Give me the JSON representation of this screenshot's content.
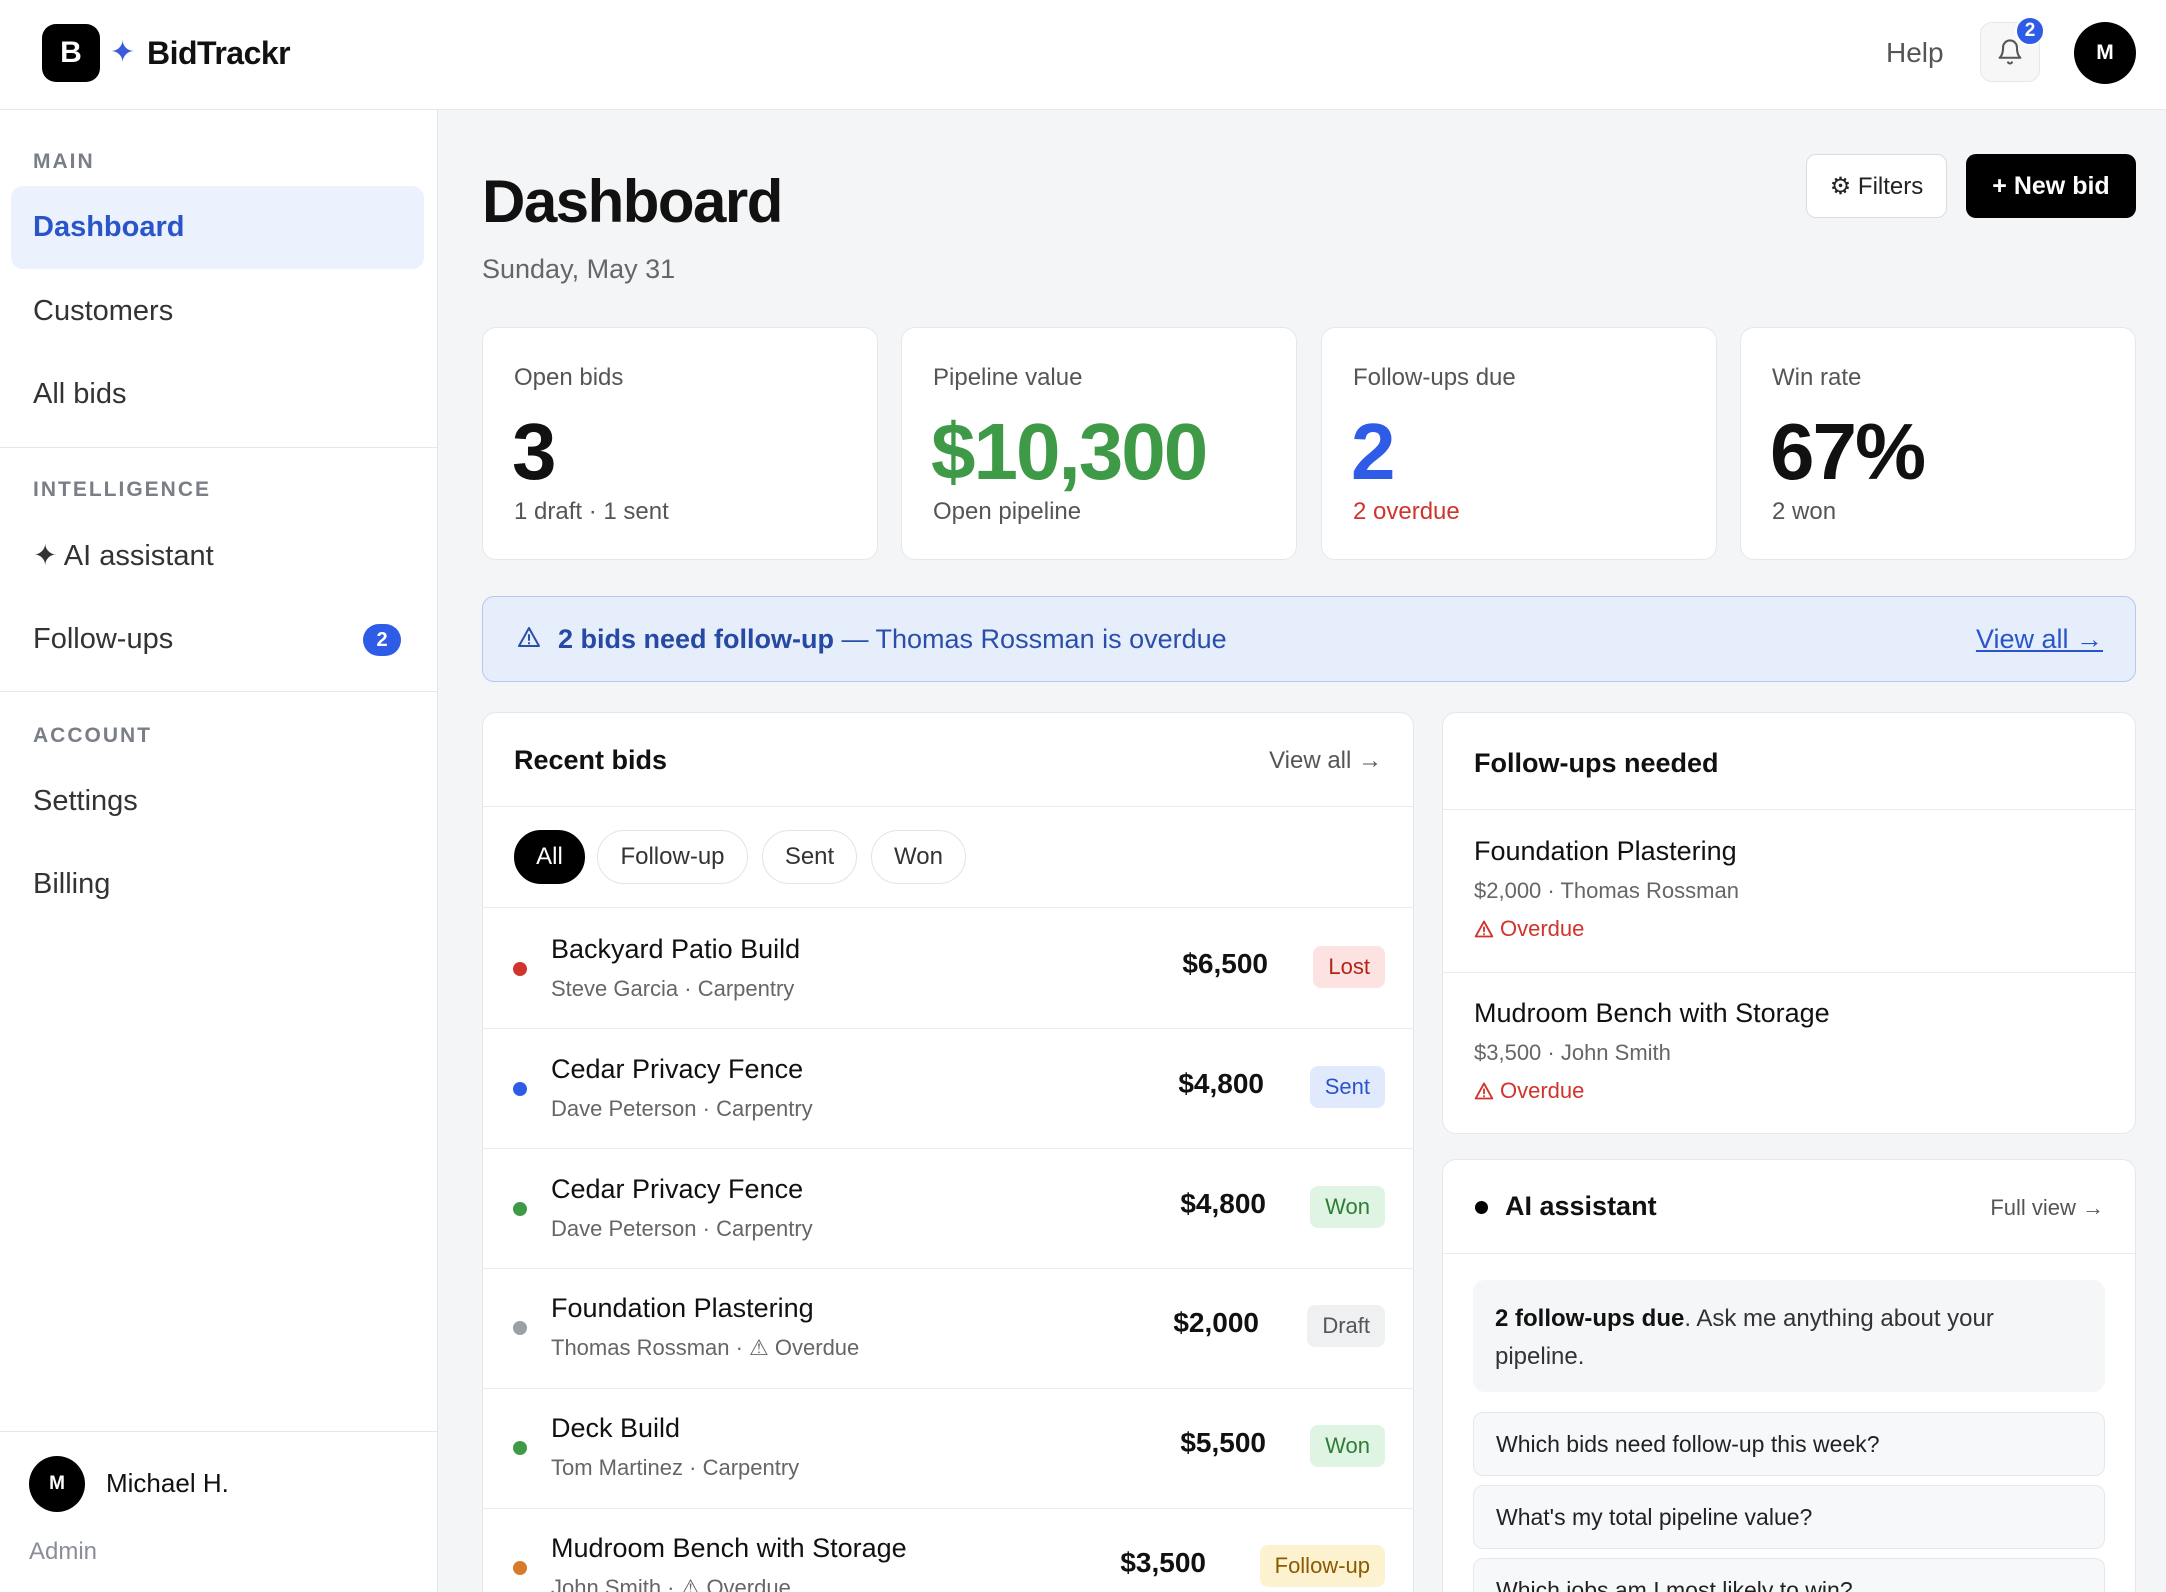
{
  "header": {
    "logo_letter": "B",
    "app_name": "BidTrackr",
    "help_label": "Help",
    "notifications_count": "2",
    "user_initial": "M"
  },
  "sidebar": {
    "sections": [
      {
        "label": "MAIN",
        "items": [
          {
            "label": "Dashboard",
            "active": true
          },
          {
            "label": "Customers"
          },
          {
            "label": "All bids"
          }
        ]
      },
      {
        "label": "INTELLIGENCE",
        "items": [
          {
            "label": "✦ AI assistant"
          },
          {
            "label": "Follow-ups",
            "badge": "2"
          }
        ]
      },
      {
        "label": "ACCOUNT",
        "items": [
          {
            "label": "Settings"
          },
          {
            "label": "Billing"
          }
        ]
      }
    ],
    "user": {
      "initial": "M",
      "name": "Michael H.",
      "role": "Admin"
    }
  },
  "page": {
    "title": "Dashboard",
    "date": "Sunday, May 31",
    "filters_label": "⚙ Filters",
    "new_bid_label": "+ New bid"
  },
  "stats": [
    {
      "label": "Open bids",
      "value": "3",
      "sub": "1 draft · 1 sent",
      "value_color": "#111111",
      "sub_color": "#555555"
    },
    {
      "label": "Pipeline value",
      "value": "$10,300",
      "sub": "Open pipeline",
      "value_color": "#3f9a47",
      "sub_color": "#555555"
    },
    {
      "label": "Follow-ups due",
      "value": "2",
      "sub": "2 overdue",
      "value_color": "#2e5ce6",
      "sub_color": "#d0342c"
    },
    {
      "label": "Win rate",
      "value": "67%",
      "sub": "2 won",
      "value_color": "#111111",
      "sub_color": "#555555"
    }
  ],
  "alert": {
    "strong": "2 bids need follow-up",
    "rest": " — Thomas Rossman is overdue",
    "link": "View all →"
  },
  "recent_bids": {
    "title": "Recent bids",
    "view_all": "View all →",
    "filters": [
      "All",
      "Follow-up",
      "Sent",
      "Won"
    ],
    "active_filter": "All",
    "rows": [
      {
        "name": "Backyard Patio Build",
        "sub": "Steve Garcia · Carpentry",
        "amount": "$6,500",
        "status": "Lost",
        "dot": "#d0342c",
        "badge_bg": "#fde2e2",
        "badge_fg": "#b42318"
      },
      {
        "name": "Cedar Privacy Fence",
        "sub": "Dave Peterson · Carpentry",
        "amount": "$4,800",
        "status": "Sent",
        "dot": "#2e5ce6",
        "badge_bg": "#e1eafd",
        "badge_fg": "#2a55c9"
      },
      {
        "name": "Cedar Privacy Fence",
        "sub": "Dave Peterson · Carpentry",
        "amount": "$4,800",
        "status": "Won",
        "dot": "#3f9a47",
        "badge_bg": "#e0f4e3",
        "badge_fg": "#2e7d36"
      },
      {
        "name": "Foundation Plastering",
        "sub": "Thomas Rossman · ⚠ Overdue",
        "amount": "$2,000",
        "status": "Draft",
        "dot": "#9aa0a8",
        "badge_bg": "#eef0f2",
        "badge_fg": "#555555"
      },
      {
        "name": "Deck Build",
        "sub": "Tom Martinez · Carpentry",
        "amount": "$5,500",
        "status": "Won",
        "dot": "#3f9a47",
        "badge_bg": "#e0f4e3",
        "badge_fg": "#2e7d36"
      },
      {
        "name": "Mudroom Bench with Storage",
        "sub": "John Smith · ⚠ Overdue",
        "amount": "$3,500",
        "status": "Follow-up",
        "dot": "#d97a2b",
        "badge_bg": "#fdf2cf",
        "badge_fg": "#8a5a00"
      }
    ]
  },
  "followups": {
    "title": "Follow-ups needed",
    "items": [
      {
        "name": "Foundation Plastering",
        "sub": "$2,000 · Thomas Rossman",
        "flag": "Overdue"
      },
      {
        "name": "Mudroom Bench with Storage",
        "sub": "$3,500 · John Smith",
        "flag": "Overdue"
      }
    ]
  },
  "ai": {
    "title": "AI assistant",
    "full_view": "Full view →",
    "intro_strong": "2 follow-ups due",
    "intro_rest": ". Ask me anything about your pipeline.",
    "suggestions": [
      "Which bids need follow-up this week?",
      "What's my total pipeline value?",
      "Which jobs am I most likely to win?"
    ]
  }
}
